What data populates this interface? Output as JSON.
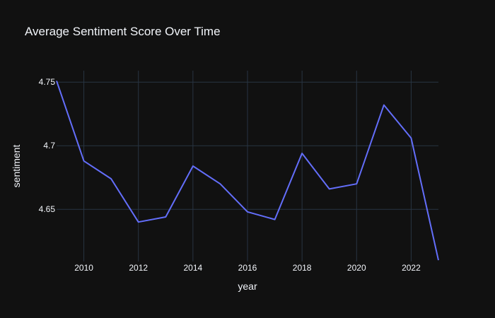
{
  "chart_data": {
    "type": "line",
    "title": "Average Sentiment Score Over Time",
    "xlabel": "year",
    "ylabel": "sentiment",
    "xlim": [
      2009,
      2023
    ],
    "ylim": [
      4.609,
      4.759
    ],
    "x_ticks": [
      2010,
      2012,
      2014,
      2016,
      2018,
      2020,
      2022
    ],
    "y_ticks": [
      4.65,
      4.7,
      4.75
    ],
    "y_tick_labels": [
      "4.65",
      "4.7",
      "4.75"
    ],
    "grid": true,
    "legend": "none",
    "series": [
      {
        "color": "#636efa",
        "x": [
          2009,
          2010,
          2011,
          2012,
          2013,
          2014,
          2015,
          2016,
          2017,
          2018,
          2019,
          2020,
          2021,
          2022,
          2023
        ],
        "y": [
          4.751,
          4.688,
          4.674,
          4.64,
          4.644,
          4.684,
          4.67,
          4.648,
          4.642,
          4.694,
          4.666,
          4.67,
          4.732,
          4.706,
          4.61
        ]
      }
    ]
  },
  "colors": {
    "background": "#111111",
    "grid": "#283442",
    "text": "#f2f5fa"
  }
}
